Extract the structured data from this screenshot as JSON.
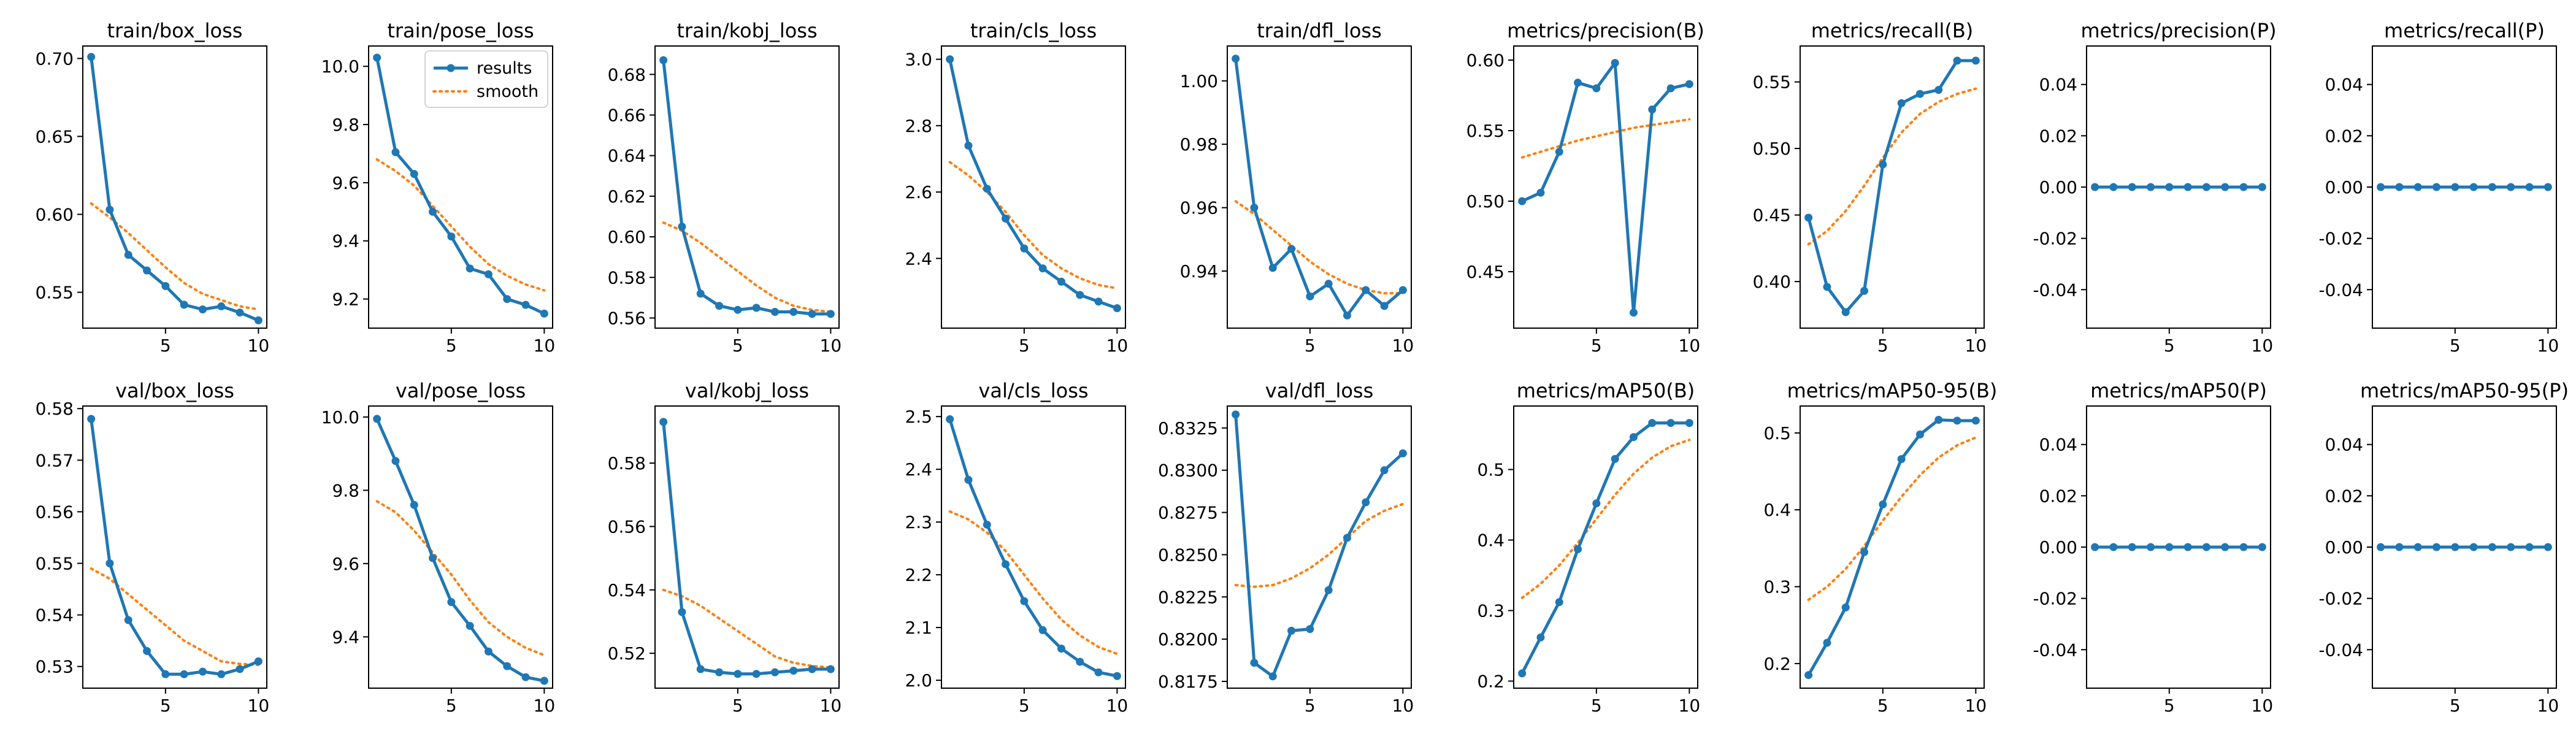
{
  "colors": {
    "results": "#1f77b4",
    "smooth": "#ff7f0e",
    "axes": "#000000",
    "background": "#ffffff"
  },
  "legend": {
    "results_label": "results",
    "smooth_label": "smooth",
    "placement": "upper-right of train/pose_loss"
  },
  "chart_data": [
    {
      "type": "line",
      "title": "train/box_loss",
      "x": [
        1,
        2,
        3,
        4,
        5,
        6,
        7,
        8,
        9,
        10
      ],
      "xticks": [
        5,
        10
      ],
      "ylim": [
        0.527,
        0.708
      ],
      "yticks": [
        0.55,
        0.6,
        0.65,
        0.7
      ],
      "yfmt": 2,
      "series": [
        {
          "name": "results",
          "values": [
            0.701,
            0.603,
            0.574,
            0.564,
            0.554,
            0.542,
            0.539,
            0.541,
            0.537,
            0.532
          ]
        },
        {
          "name": "smooth",
          "values": [
            0.607,
            0.598,
            0.588,
            0.577,
            0.566,
            0.556,
            0.549,
            0.545,
            0.541,
            0.539
          ]
        }
      ]
    },
    {
      "type": "line",
      "title": "train/pose_loss",
      "x": [
        1,
        2,
        3,
        4,
        5,
        6,
        7,
        8,
        9,
        10
      ],
      "xticks": [
        5,
        10
      ],
      "ylim": [
        9.1,
        10.07
      ],
      "yticks": [
        9.2,
        9.4,
        9.6,
        9.8,
        10.0
      ],
      "yfmt": 1,
      "series": [
        {
          "name": "results",
          "values": [
            10.03,
            9.705,
            9.63,
            9.5,
            9.415,
            9.305,
            9.285,
            9.2,
            9.18,
            9.15
          ]
        },
        {
          "name": "smooth",
          "values": [
            9.68,
            9.64,
            9.59,
            9.52,
            9.45,
            9.38,
            9.32,
            9.28,
            9.25,
            9.23
          ]
        }
      ]
    },
    {
      "type": "line",
      "title": "train/kobj_loss",
      "x": [
        1,
        2,
        3,
        4,
        5,
        6,
        7,
        8,
        9,
        10
      ],
      "xticks": [
        5,
        10
      ],
      "ylim": [
        0.555,
        0.694
      ],
      "yticks": [
        0.56,
        0.58,
        0.6,
        0.62,
        0.64,
        0.66,
        0.68
      ],
      "yfmt": 2,
      "series": [
        {
          "name": "results",
          "values": [
            0.687,
            0.605,
            0.572,
            0.566,
            0.564,
            0.565,
            0.563,
            0.563,
            0.562,
            0.562
          ]
        },
        {
          "name": "smooth",
          "values": [
            0.607,
            0.603,
            0.597,
            0.59,
            0.583,
            0.576,
            0.57,
            0.566,
            0.564,
            0.563
          ]
        }
      ]
    },
    {
      "type": "line",
      "title": "train/cls_loss",
      "x": [
        1,
        2,
        3,
        4,
        5,
        6,
        7,
        8,
        9,
        10
      ],
      "xticks": [
        5,
        10
      ],
      "ylim": [
        2.19,
        3.04
      ],
      "yticks": [
        2.4,
        2.6,
        2.8,
        3.0
      ],
      "yfmt": 1,
      "series": [
        {
          "name": "results",
          "values": [
            3.0,
            2.74,
            2.61,
            2.52,
            2.43,
            2.37,
            2.33,
            2.29,
            2.27,
            2.25
          ]
        },
        {
          "name": "smooth",
          "values": [
            2.69,
            2.65,
            2.6,
            2.54,
            2.47,
            2.41,
            2.37,
            2.34,
            2.32,
            2.31
          ]
        }
      ]
    },
    {
      "type": "line",
      "title": "train/dfl_loss",
      "x": [
        1,
        2,
        3,
        4,
        5,
        6,
        7,
        8,
        9,
        10
      ],
      "xticks": [
        5,
        10
      ],
      "ylim": [
        0.922,
        1.011
      ],
      "yticks": [
        0.94,
        0.96,
        0.98,
        1.0
      ],
      "yfmt": 2,
      "series": [
        {
          "name": "results",
          "values": [
            1.007,
            0.96,
            0.941,
            0.947,
            0.932,
            0.936,
            0.926,
            0.934,
            0.929,
            0.934
          ]
        },
        {
          "name": "smooth",
          "values": [
            0.962,
            0.958,
            0.953,
            0.948,
            0.943,
            0.939,
            0.936,
            0.934,
            0.933,
            0.933
          ]
        }
      ]
    },
    {
      "type": "line",
      "title": "metrics/precision(B)",
      "x": [
        1,
        2,
        3,
        4,
        5,
        6,
        7,
        8,
        9,
        10
      ],
      "xticks": [
        5,
        10
      ],
      "ylim": [
        0.41,
        0.61
      ],
      "yticks": [
        0.45,
        0.5,
        0.55,
        0.6
      ],
      "yfmt": 2,
      "series": [
        {
          "name": "results",
          "values": [
            0.5,
            0.506,
            0.535,
            0.584,
            0.58,
            0.598,
            0.421,
            0.565,
            0.58,
            0.583
          ]
        },
        {
          "name": "smooth",
          "values": [
            0.531,
            0.535,
            0.539,
            0.543,
            0.546,
            0.549,
            0.552,
            0.554,
            0.556,
            0.558
          ]
        }
      ]
    },
    {
      "type": "line",
      "title": "metrics/recall(B)",
      "x": [
        1,
        2,
        3,
        4,
        5,
        6,
        7,
        8,
        9,
        10
      ],
      "xticks": [
        5,
        10
      ],
      "ylim": [
        0.365,
        0.577
      ],
      "yticks": [
        0.4,
        0.45,
        0.5,
        0.55
      ],
      "yfmt": 2,
      "series": [
        {
          "name": "results",
          "values": [
            0.448,
            0.396,
            0.377,
            0.393,
            0.488,
            0.534,
            0.541,
            0.544,
            0.566,
            0.566
          ]
        },
        {
          "name": "smooth",
          "values": [
            0.428,
            0.438,
            0.453,
            0.472,
            0.493,
            0.512,
            0.526,
            0.535,
            0.541,
            0.545
          ]
        }
      ]
    },
    {
      "type": "line",
      "title": "metrics/precision(P)",
      "x": [
        1,
        2,
        3,
        4,
        5,
        6,
        7,
        8,
        9,
        10
      ],
      "xticks": [
        5,
        10
      ],
      "ylim": [
        -0.055,
        0.055
      ],
      "yticks": [
        -0.04,
        -0.02,
        0.0,
        0.02,
        0.04
      ],
      "yfmt": 2,
      "series": [
        {
          "name": "results",
          "values": [
            0,
            0,
            0,
            0,
            0,
            0,
            0,
            0,
            0,
            0
          ]
        },
        {
          "name": "smooth",
          "values": [
            0,
            0,
            0,
            0,
            0,
            0,
            0,
            0,
            0,
            0
          ]
        }
      ]
    },
    {
      "type": "line",
      "title": "metrics/recall(P)",
      "x": [
        1,
        2,
        3,
        4,
        5,
        6,
        7,
        8,
        9,
        10
      ],
      "xticks": [
        5,
        10
      ],
      "ylim": [
        -0.055,
        0.055
      ],
      "yticks": [
        -0.04,
        -0.02,
        0.0,
        0.02,
        0.04
      ],
      "yfmt": 2,
      "series": [
        {
          "name": "results",
          "values": [
            0,
            0,
            0,
            0,
            0,
            0,
            0,
            0,
            0,
            0
          ]
        },
        {
          "name": "smooth",
          "values": [
            0,
            0,
            0,
            0,
            0,
            0,
            0,
            0,
            0,
            0
          ]
        }
      ]
    },
    {
      "type": "line",
      "title": "val/box_loss",
      "x": [
        1,
        2,
        3,
        4,
        5,
        6,
        7,
        8,
        9,
        10
      ],
      "xticks": [
        5,
        10
      ],
      "ylim": [
        0.5258,
        0.5805
      ],
      "yticks": [
        0.53,
        0.54,
        0.55,
        0.56,
        0.57,
        0.58
      ],
      "yfmt": 2,
      "series": [
        {
          "name": "results",
          "values": [
            0.578,
            0.55,
            0.539,
            0.533,
            0.5285,
            0.5285,
            0.529,
            0.5285,
            0.5295,
            0.531
          ]
        },
        {
          "name": "smooth",
          "values": [
            0.549,
            0.547,
            0.544,
            0.541,
            0.538,
            0.535,
            0.533,
            0.531,
            0.5305,
            0.5303
          ]
        }
      ]
    },
    {
      "type": "line",
      "title": "val/pose_loss",
      "x": [
        1,
        2,
        3,
        4,
        5,
        6,
        7,
        8,
        9,
        10
      ],
      "xticks": [
        5,
        10
      ],
      "ylim": [
        9.26,
        10.03
      ],
      "yticks": [
        9.4,
        9.6,
        9.8,
        10.0
      ],
      "yfmt": 1,
      "series": [
        {
          "name": "results",
          "values": [
            9.995,
            9.88,
            9.76,
            9.615,
            9.495,
            9.43,
            9.36,
            9.32,
            9.29,
            9.28
          ]
        },
        {
          "name": "smooth",
          "values": [
            9.77,
            9.74,
            9.69,
            9.63,
            9.57,
            9.5,
            9.44,
            9.4,
            9.37,
            9.35
          ]
        }
      ]
    },
    {
      "type": "line",
      "title": "val/kobj_loss",
      "x": [
        1,
        2,
        3,
        4,
        5,
        6,
        7,
        8,
        9,
        10
      ],
      "xticks": [
        5,
        10
      ],
      "ylim": [
        0.509,
        0.598
      ],
      "yticks": [
        0.52,
        0.54,
        0.56,
        0.58
      ],
      "yfmt": 2,
      "series": [
        {
          "name": "results",
          "values": [
            0.593,
            0.533,
            0.515,
            0.514,
            0.5135,
            0.5135,
            0.514,
            0.5145,
            0.515,
            0.515
          ]
        },
        {
          "name": "smooth",
          "values": [
            0.54,
            0.538,
            0.535,
            0.531,
            0.527,
            0.523,
            0.519,
            0.517,
            0.516,
            0.5155
          ]
        }
      ]
    },
    {
      "type": "line",
      "title": "val/cls_loss",
      "x": [
        1,
        2,
        3,
        4,
        5,
        6,
        7,
        8,
        9,
        10
      ],
      "xticks": [
        5,
        10
      ],
      "ylim": [
        1.985,
        2.52
      ],
      "yticks": [
        2.0,
        2.1,
        2.2,
        2.3,
        2.4,
        2.5
      ],
      "yfmt": 1,
      "series": [
        {
          "name": "results",
          "values": [
            2.495,
            2.38,
            2.295,
            2.22,
            2.15,
            2.095,
            2.06,
            2.035,
            2.015,
            2.008
          ]
        },
        {
          "name": "smooth",
          "values": [
            2.32,
            2.305,
            2.28,
            2.245,
            2.2,
            2.155,
            2.115,
            2.085,
            2.063,
            2.05
          ]
        }
      ]
    },
    {
      "type": "line",
      "title": "val/dfl_loss",
      "x": [
        1,
        2,
        3,
        4,
        5,
        6,
        7,
        8,
        9,
        10
      ],
      "xticks": [
        5,
        10
      ],
      "ylim": [
        0.8171,
        0.8338
      ],
      "yticks": [
        0.8175,
        0.82,
        0.8225,
        0.825,
        0.8275,
        0.83,
        0.8325
      ],
      "yfmt": 4,
      "series": [
        {
          "name": "results",
          "values": [
            0.8333,
            0.8186,
            0.8178,
            0.8205,
            0.8206,
            0.8229,
            0.826,
            0.8281,
            0.83,
            0.831
          ]
        },
        {
          "name": "smooth",
          "values": [
            0.8232,
            0.8231,
            0.8232,
            0.8236,
            0.8242,
            0.825,
            0.826,
            0.827,
            0.8276,
            0.828
          ]
        }
      ]
    },
    {
      "type": "line",
      "title": "metrics/mAP50(B)",
      "x": [
        1,
        2,
        3,
        4,
        5,
        6,
        7,
        8,
        9,
        10
      ],
      "xticks": [
        5,
        10
      ],
      "ylim": [
        0.19,
        0.59
      ],
      "yticks": [
        0.2,
        0.3,
        0.4,
        0.5
      ],
      "yfmt": 1,
      "series": [
        {
          "name": "results",
          "values": [
            0.211,
            0.262,
            0.312,
            0.387,
            0.452,
            0.515,
            0.546,
            0.566,
            0.566,
            0.566
          ]
        },
        {
          "name": "smooth",
          "values": [
            0.318,
            0.338,
            0.364,
            0.396,
            0.43,
            0.464,
            0.494,
            0.517,
            0.533,
            0.542
          ]
        }
      ]
    },
    {
      "type": "line",
      "title": "metrics/mAP50-95(B)",
      "x": [
        1,
        2,
        3,
        4,
        5,
        6,
        7,
        8,
        9,
        10
      ],
      "xticks": [
        5,
        10
      ],
      "ylim": [
        0.168,
        0.535
      ],
      "yticks": [
        0.2,
        0.3,
        0.4,
        0.5
      ],
      "yfmt": 1,
      "series": [
        {
          "name": "results",
          "values": [
            0.185,
            0.227,
            0.273,
            0.345,
            0.407,
            0.466,
            0.498,
            0.517,
            0.516,
            0.516
          ]
        },
        {
          "name": "smooth",
          "values": [
            0.283,
            0.3,
            0.323,
            0.353,
            0.386,
            0.417,
            0.445,
            0.468,
            0.484,
            0.494
          ]
        }
      ]
    },
    {
      "type": "line",
      "title": "metrics/mAP50(P)",
      "x": [
        1,
        2,
        3,
        4,
        5,
        6,
        7,
        8,
        9,
        10
      ],
      "xticks": [
        5,
        10
      ],
      "ylim": [
        -0.055,
        0.055
      ],
      "yticks": [
        -0.04,
        -0.02,
        0.0,
        0.02,
        0.04
      ],
      "yfmt": 2,
      "series": [
        {
          "name": "results",
          "values": [
            0,
            0,
            0,
            0,
            0,
            0,
            0,
            0,
            0,
            0
          ]
        },
        {
          "name": "smooth",
          "values": [
            0,
            0,
            0,
            0,
            0,
            0,
            0,
            0,
            0,
            0
          ]
        }
      ]
    },
    {
      "type": "line",
      "title": "metrics/mAP50-95(P)",
      "x": [
        1,
        2,
        3,
        4,
        5,
        6,
        7,
        8,
        9,
        10
      ],
      "xticks": [
        5,
        10
      ],
      "ylim": [
        -0.055,
        0.055
      ],
      "yticks": [
        -0.04,
        -0.02,
        0.0,
        0.02,
        0.04
      ],
      "yfmt": 2,
      "series": [
        {
          "name": "results",
          "values": [
            0,
            0,
            0,
            0,
            0,
            0,
            0,
            0,
            0,
            0
          ]
        },
        {
          "name": "smooth",
          "values": [
            0,
            0,
            0,
            0,
            0,
            0,
            0,
            0,
            0,
            0
          ]
        }
      ]
    }
  ]
}
